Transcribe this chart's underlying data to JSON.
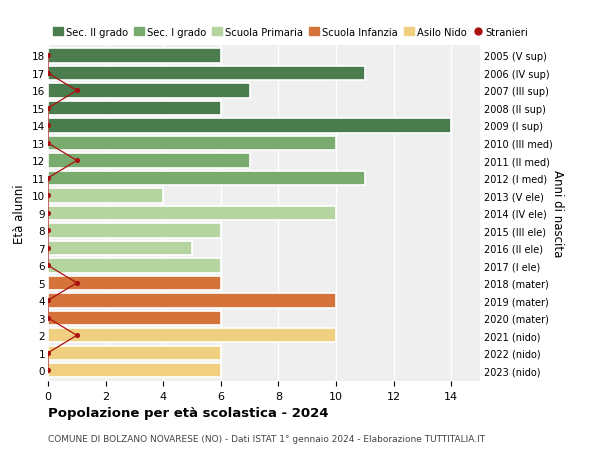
{
  "ages": [
    18,
    17,
    16,
    15,
    14,
    13,
    12,
    11,
    10,
    9,
    8,
    7,
    6,
    5,
    4,
    3,
    2,
    1,
    0
  ],
  "right_labels": [
    "2005 (V sup)",
    "2006 (IV sup)",
    "2007 (III sup)",
    "2008 (II sup)",
    "2009 (I sup)",
    "2010 (III med)",
    "2011 (II med)",
    "2012 (I med)",
    "2013 (V ele)",
    "2014 (IV ele)",
    "2015 (III ele)",
    "2016 (II ele)",
    "2017 (I ele)",
    "2018 (mater)",
    "2019 (mater)",
    "2020 (mater)",
    "2021 (nido)",
    "2022 (nido)",
    "2023 (nido)"
  ],
  "bar_values": [
    6,
    11,
    7,
    6,
    14,
    10,
    7,
    11,
    4,
    10,
    6,
    5,
    6,
    6,
    10,
    6,
    10,
    6,
    6
  ],
  "bar_colors": [
    "#4a7c4e",
    "#4a7c4e",
    "#4a7c4e",
    "#4a7c4e",
    "#4a7c4e",
    "#7aab6e",
    "#7aab6e",
    "#7aab6e",
    "#b5d4a0",
    "#b5d4a0",
    "#b5d4a0",
    "#b5d4a0",
    "#b5d4a0",
    "#d4733a",
    "#d4733a",
    "#d4733a",
    "#f0d080",
    "#f0d080",
    "#f0d080"
  ],
  "stranieri_values": [
    0,
    0,
    1,
    0,
    0,
    0,
    1,
    0,
    0,
    0,
    0,
    0,
    0,
    1,
    0,
    0,
    1,
    0,
    0
  ],
  "stranieri_color": "#aa1111",
  "legend_labels": [
    "Sec. II grado",
    "Sec. I grado",
    "Scuola Primaria",
    "Scuola Infanzia",
    "Asilo Nido",
    "Stranieri"
  ],
  "legend_colors": [
    "#4a7c4e",
    "#7aab6e",
    "#b5d4a0",
    "#d4733a",
    "#f0d080",
    "#aa1111"
  ],
  "ylabel": "Età alunni",
  "right_ylabel": "Anni di nascita",
  "title": "Popolazione per età scolastica - 2024",
  "subtitle": "COMUNE DI BOLZANO NOVARESE (NO) - Dati ISTAT 1° gennaio 2024 - Elaborazione TUTTITALIA.IT",
  "xlim": [
    0,
    15
  ],
  "xticks": [
    0,
    2,
    4,
    6,
    8,
    10,
    12,
    14
  ],
  "background_color": "#ffffff",
  "bar_background": "#efefef"
}
